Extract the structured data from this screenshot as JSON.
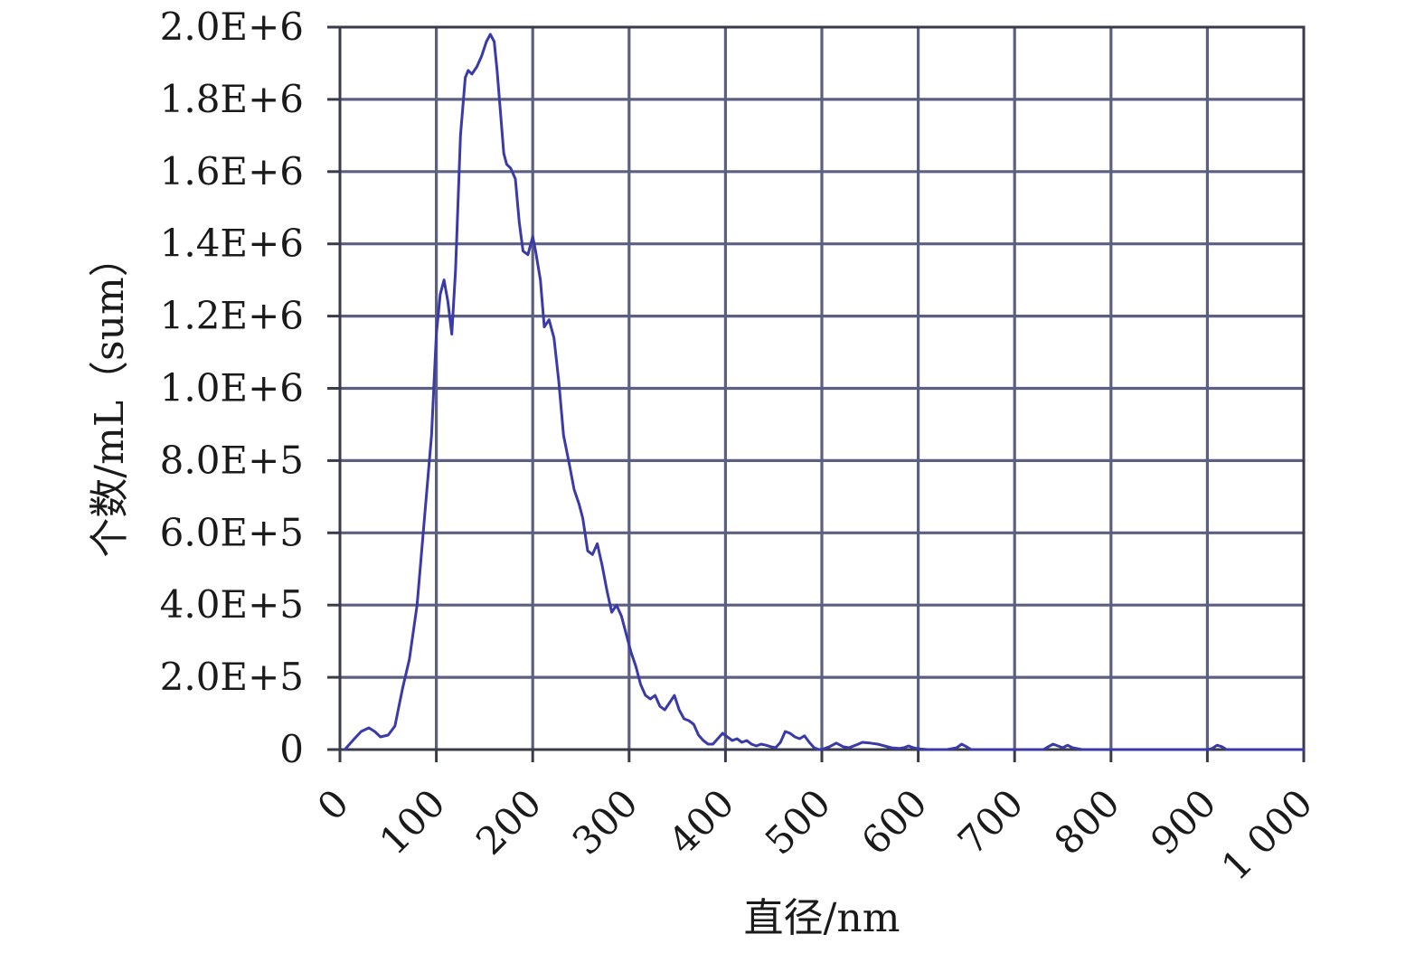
{
  "chart_data": {
    "type": "line",
    "xlabel": "直径/nm",
    "ylabel": "个数/mL（sum）",
    "xlim": [
      0,
      1000
    ],
    "ylim": [
      0,
      2000000
    ],
    "grid": true,
    "x_ticks": [
      {
        "value": 0,
        "label": "0"
      },
      {
        "value": 100,
        "label": "100"
      },
      {
        "value": 200,
        "label": "200"
      },
      {
        "value": 300,
        "label": "300"
      },
      {
        "value": 400,
        "label": "400"
      },
      {
        "value": 500,
        "label": "500"
      },
      {
        "value": 600,
        "label": "600"
      },
      {
        "value": 700,
        "label": "700"
      },
      {
        "value": 800,
        "label": "800"
      },
      {
        "value": 900,
        "label": "900"
      },
      {
        "value": 1000,
        "label": "1 000"
      }
    ],
    "y_ticks": [
      {
        "value": 0,
        "label": "0"
      },
      {
        "value": 200000,
        "label": "2.0E+5"
      },
      {
        "value": 400000,
        "label": "4.0E+5"
      },
      {
        "value": 600000,
        "label": "6.0E+5"
      },
      {
        "value": 800000,
        "label": "8.0E+5"
      },
      {
        "value": 1000000,
        "label": "1.0E+6"
      },
      {
        "value": 1200000,
        "label": "1.2E+6"
      },
      {
        "value": 1400000,
        "label": "1.4E+6"
      },
      {
        "value": 1600000,
        "label": "1.6E+6"
      },
      {
        "value": 1800000,
        "label": "1.8E+6"
      },
      {
        "value": 2000000,
        "label": "2.0E+6"
      }
    ],
    "line_color": "#3a3aa8",
    "grid_color": "#5d5f80",
    "series": [
      {
        "x": [
          5,
          15,
          22,
          30,
          36,
          42,
          50,
          57,
          65,
          72,
          80,
          88,
          95,
          100,
          104,
          108,
          112,
          116,
          120,
          125,
          130,
          133,
          137,
          142,
          147,
          152,
          156,
          160,
          163,
          167,
          170,
          173,
          177,
          182,
          186,
          190,
          195,
          200,
          203,
          208,
          212,
          217,
          222,
          227,
          232,
          238,
          243,
          248,
          252,
          257,
          262,
          267,
          272,
          277,
          282,
          287,
          292,
          297,
          302,
          307,
          312,
          317,
          322,
          327,
          332,
          337,
          342,
          347,
          352,
          357,
          362,
          367,
          372,
          377,
          382,
          387,
          392,
          397,
          402,
          407,
          412,
          417,
          422,
          427,
          432,
          437,
          442,
          447,
          452,
          457,
          462,
          467,
          472,
          477,
          482,
          487,
          492,
          497,
          502,
          508,
          515,
          522,
          528,
          535,
          542,
          550,
          558,
          565,
          572,
          580,
          585,
          590,
          595,
          600,
          610,
          620,
          630,
          640,
          645,
          650,
          655,
          660,
          670,
          680,
          690,
          700,
          710,
          720,
          730,
          735,
          740,
          745,
          750,
          755,
          760,
          770,
          780,
          800,
          850,
          900,
          905,
          910,
          915,
          920,
          930,
          950,
          975,
          1000
        ],
        "y": [
          0,
          30000,
          50000,
          60000,
          50000,
          35000,
          40000,
          65000,
          170000,
          250000,
          400000,
          650000,
          870000,
          1150000,
          1260000,
          1300000,
          1240000,
          1150000,
          1330000,
          1700000,
          1860000,
          1880000,
          1870000,
          1890000,
          1920000,
          1960000,
          1980000,
          1960000,
          1880000,
          1750000,
          1650000,
          1620000,
          1610000,
          1580000,
          1460000,
          1380000,
          1370000,
          1420000,
          1380000,
          1300000,
          1170000,
          1190000,
          1140000,
          1020000,
          870000,
          790000,
          720000,
          680000,
          640000,
          550000,
          540000,
          570000,
          510000,
          440000,
          380000,
          400000,
          370000,
          320000,
          270000,
          230000,
          180000,
          150000,
          140000,
          150000,
          120000,
          110000,
          130000,
          150000,
          110000,
          85000,
          80000,
          70000,
          40000,
          25000,
          15000,
          15000,
          30000,
          45000,
          35000,
          25000,
          30000,
          20000,
          25000,
          15000,
          10000,
          15000,
          12000,
          8000,
          5000,
          20000,
          50000,
          45000,
          35000,
          30000,
          38000,
          20000,
          5000,
          0,
          2000,
          8000,
          18000,
          8000,
          5000,
          12000,
          20000,
          18000,
          15000,
          10000,
          5000,
          3000,
          5000,
          10000,
          5000,
          2000,
          0,
          0,
          0,
          5000,
          15000,
          8000,
          0,
          0,
          0,
          0,
          0,
          0,
          0,
          0,
          0,
          8000,
          15000,
          10000,
          5000,
          12000,
          5000,
          0,
          0,
          0,
          0,
          0,
          3000,
          12000,
          8000,
          0,
          0,
          0,
          0,
          0
        ]
      }
    ]
  }
}
